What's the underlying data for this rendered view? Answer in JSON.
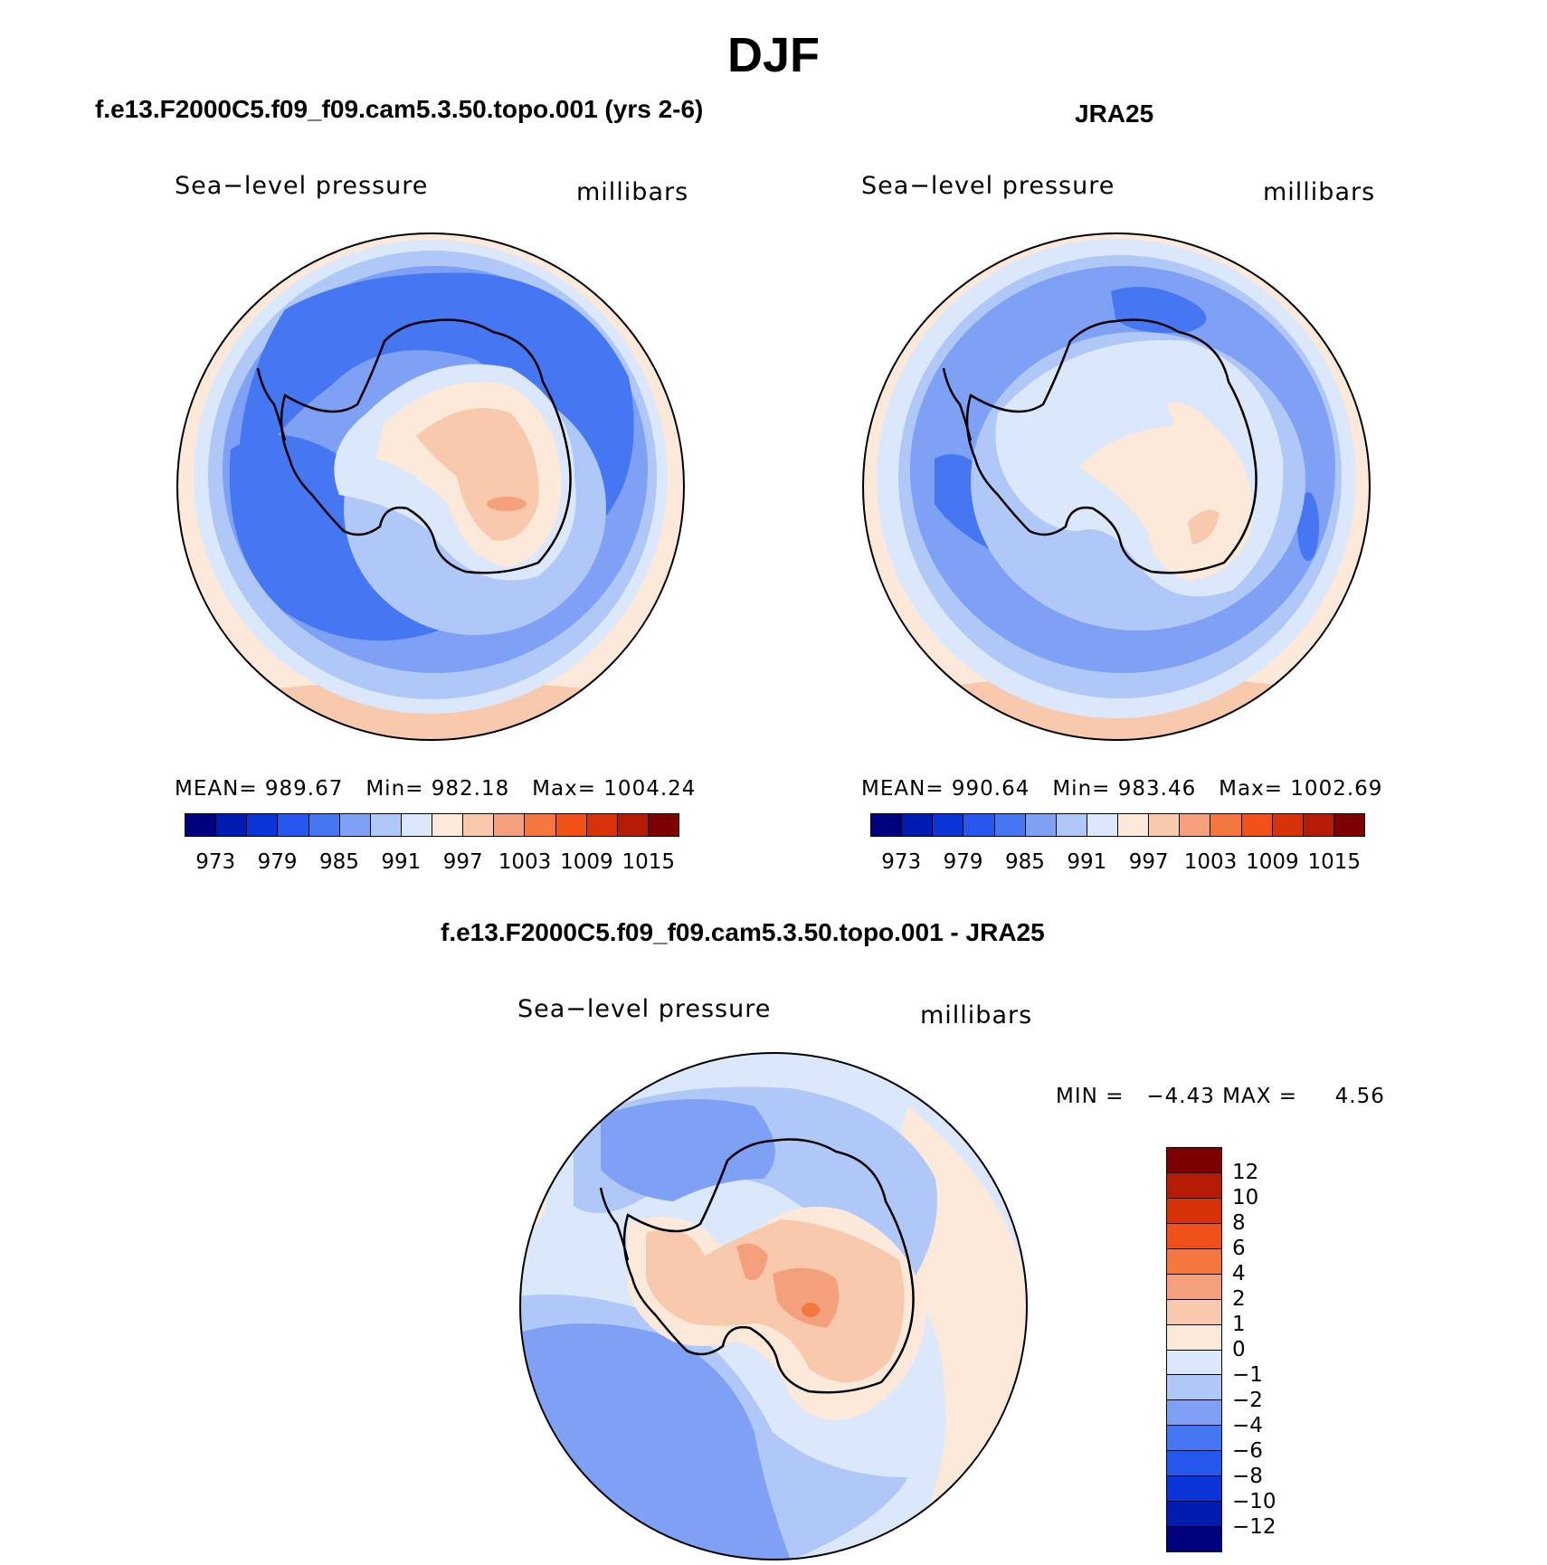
{
  "figure": {
    "season_title": "DJF",
    "panels": [
      {
        "case_title": "f.e13.F2000C5.f09_f09.cam5.3.50.topo.001 (yrs 2-6)",
        "variable": "Sea−level pressure",
        "units": "millibars",
        "stats": {
          "mean_label": "MEAN=",
          "mean": "989.67",
          "min_label": "Min=",
          "min": "982.18",
          "max_label": "Max=",
          "max": "1004.24"
        }
      },
      {
        "case_title": "JRA25",
        "variable": "Sea−level pressure",
        "units": "millibars",
        "stats": {
          "mean_label": "MEAN=",
          "mean": "990.64",
          "min_label": "Min=",
          "min": "983.46",
          "max_label": "Max=",
          "max": "1002.69"
        }
      },
      {
        "case_title": "f.e13.F2000C5.f09_f09.cam5.3.50.topo.001 - JRA25",
        "variable": "Sea−level pressure",
        "units": "millibars",
        "minmax": {
          "min_label": "MIN =",
          "min": "−4.43",
          "max_label": "MAX =",
          "max": "4.56"
        }
      }
    ],
    "abs_colorbar": {
      "ticks": [
        "973",
        "979",
        "985",
        "991",
        "997",
        "1003",
        "1009",
        "1015"
      ],
      "colors": [
        "#00007f",
        "#001cb0",
        "#0a34d6",
        "#2556ee",
        "#4577f2",
        "#7ea0f5",
        "#b0c8f8",
        "#dbe8fb",
        "#fce9d9",
        "#f9c9ae",
        "#f5a07c",
        "#f3773f",
        "#ef5118",
        "#d83209",
        "#b41c05",
        "#7d0000"
      ]
    },
    "diff_colorbar": {
      "ticks": [
        "12",
        "10",
        "8",
        "6",
        "4",
        "2",
        "1",
        "0",
        "−1",
        "−2",
        "−4",
        "−6",
        "−8",
        "−10",
        "−12"
      ],
      "colors": [
        "#7d0000",
        "#b41c05",
        "#d83209",
        "#ef5118",
        "#f3773f",
        "#f5a07c",
        "#f9c9ae",
        "#fce9d9",
        "#dbe8fb",
        "#b0c8f8",
        "#7ea0f5",
        "#4577f2",
        "#2556ee",
        "#0a34d6",
        "#001cb0",
        "#00007f"
      ]
    },
    "map_palette": {
      "deep": "#4577f2",
      "mid": "#7ea0f5",
      "light": "#b0c8f8",
      "pale": "#dbe8fb",
      "warm1": "#fce9d9",
      "warm2": "#f9c9ae",
      "warm3": "#f5a07c",
      "warm4": "#f3773f"
    }
  }
}
